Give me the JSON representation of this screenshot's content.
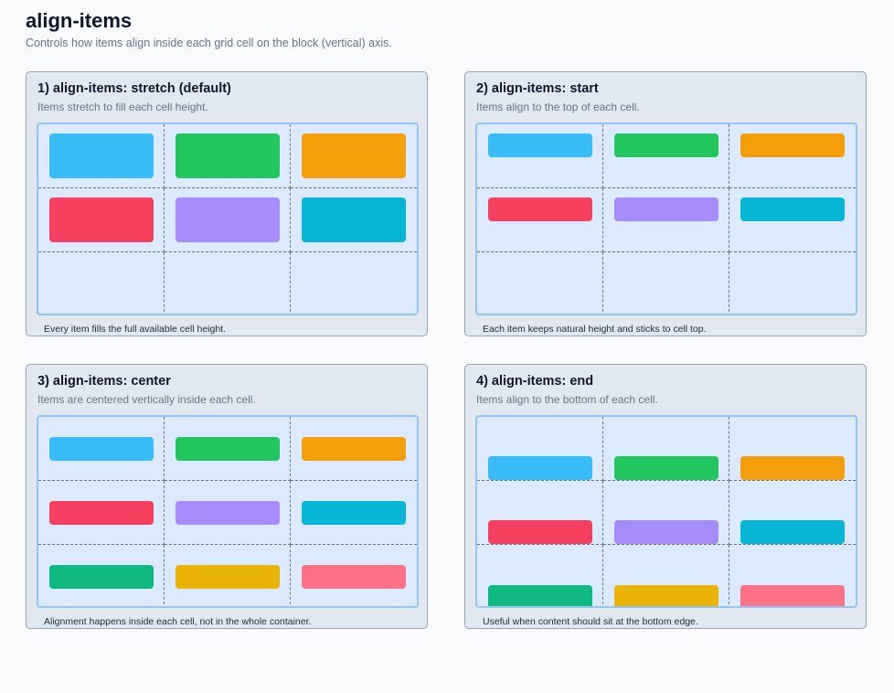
{
  "page": {
    "title": "align-items",
    "subtitle": "Controls how items align inside each grid cell on the block (vertical) axis."
  },
  "panels": [
    {
      "title": "1) align-items: stretch (default)",
      "description": "Items stretch to fill each cell height.",
      "note": "Every item fills the full available cell height.",
      "mode": "stretch",
      "items": [
        {
          "color": "#38bdf8"
        },
        {
          "color": "#22c55e"
        },
        {
          "color": "#f59e0b"
        },
        {
          "color": "#f43f5e"
        },
        {
          "color": "#a78bfa"
        },
        {
          "color": "#06b6d4"
        }
      ]
    },
    {
      "title": "2) align-items: start",
      "description": "Items align to the top of each cell.",
      "note": "Each item keeps natural height and sticks to cell top.",
      "mode": "start",
      "items": [
        {
          "color": "#38bdf8"
        },
        {
          "color": "#22c55e"
        },
        {
          "color": "#f59e0b"
        },
        {
          "color": "#f43f5e"
        },
        {
          "color": "#a78bfa"
        },
        {
          "color": "#06b6d4"
        }
      ]
    },
    {
      "title": "3) align-items: center",
      "description": "Items are centered vertically inside each cell.",
      "note": "Alignment happens inside each cell, not in the whole container.",
      "mode": "center",
      "items": [
        {
          "color": "#38bdf8"
        },
        {
          "color": "#22c55e"
        },
        {
          "color": "#f59e0b"
        },
        {
          "color": "#f43f5e"
        },
        {
          "color": "#a78bfa"
        },
        {
          "color": "#06b6d4"
        },
        {
          "color": "#10b981"
        },
        {
          "color": "#eab308"
        },
        {
          "color": "#fb7185"
        }
      ]
    },
    {
      "title": "4) align-items: end",
      "description": "Items align to the bottom of each cell.",
      "note": "Useful when content should sit at the bottom edge.",
      "mode": "end",
      "items": [
        {
          "color": "#38bdf8"
        },
        {
          "color": "#22c55e"
        },
        {
          "color": "#f59e0b"
        },
        {
          "color": "#f43f5e"
        },
        {
          "color": "#a78bfa"
        },
        {
          "color": "#06b6d4"
        },
        {
          "color": "#10b981"
        },
        {
          "color": "#eab308"
        },
        {
          "color": "#fb7185"
        }
      ]
    }
  ]
}
